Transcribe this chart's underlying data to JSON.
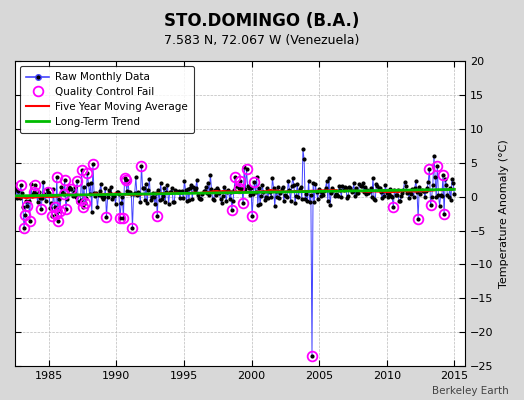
{
  "title": "STO.DOMINGO (B.A.)",
  "subtitle": "7.583 N, 72.067 W (Venezuela)",
  "ylabel": "Temperature Anomaly (°C)",
  "watermark": "Berkeley Earth",
  "xlim": [
    1982.5,
    2015.8
  ],
  "ylim": [
    -25,
    20
  ],
  "yticks": [
    -25,
    -20,
    -15,
    -10,
    -5,
    0,
    5,
    10,
    15,
    20
  ],
  "xticks": [
    1985,
    1990,
    1995,
    2000,
    2005,
    2010,
    2015
  ],
  "bg_color": "#d8d8d8",
  "plot_bg_color": "#ffffff",
  "raw_color": "#4444ff",
  "raw_dot_color": "#000000",
  "qc_color": "#ff00ff",
  "ma_color": "#ff0000",
  "trend_color": "#00bb00",
  "legend_labels": [
    "Raw Monthly Data",
    "Quality Control Fail",
    "Five Year Moving Average",
    "Long-Term Trend"
  ],
  "seed": 42,
  "n_points": 396,
  "start_year": 1982.0,
  "end_year": 2015.0
}
